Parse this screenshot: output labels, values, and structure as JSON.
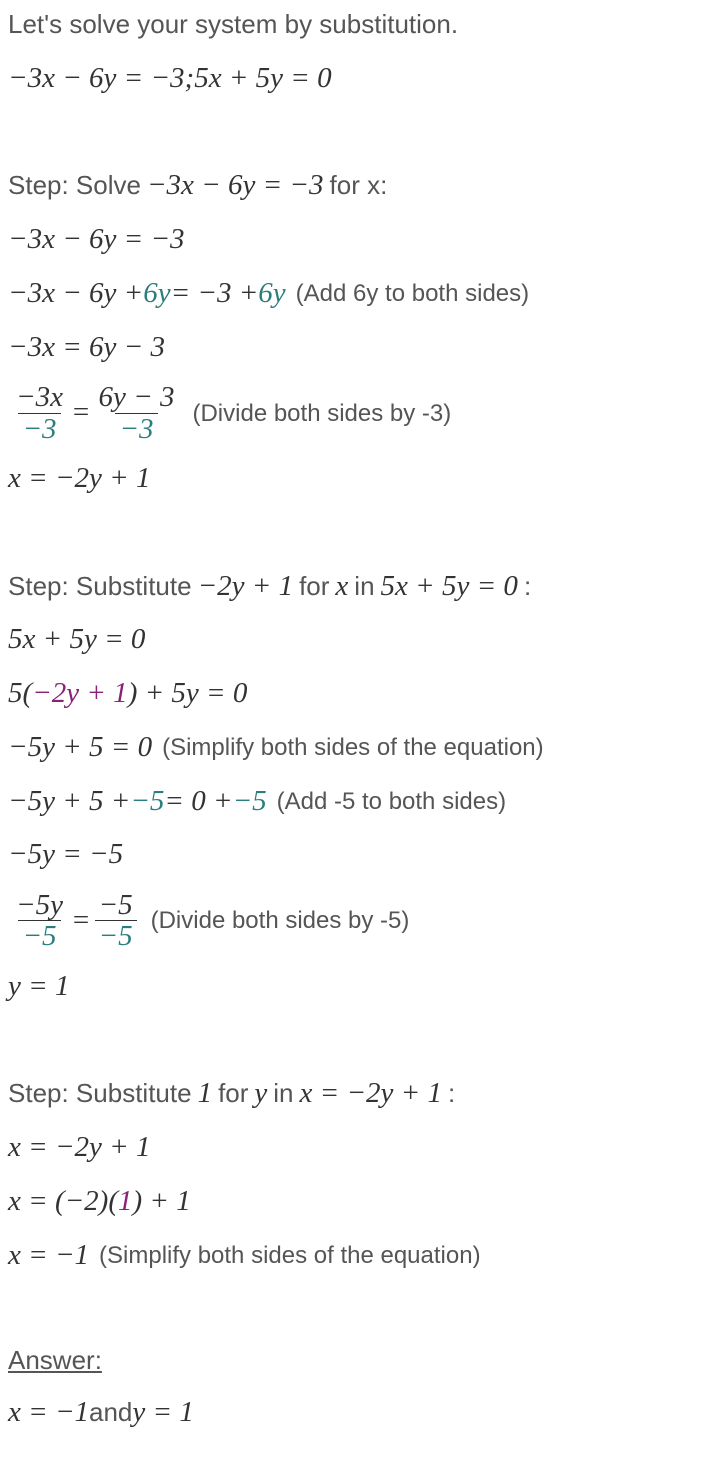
{
  "colors": {
    "teal": "#2a7e7e",
    "purple": "#8a2277",
    "text": "#333333",
    "muted": "#555555"
  },
  "intro": "Let's solve your system by substitution.",
  "system": {
    "eq1": "−3x − 6y = −3",
    "sep": "; ",
    "eq2": "5x + 5y = 0"
  },
  "step1": {
    "prefix": "Step: Solve ",
    "math": "−3x − 6y = −3",
    "suffix": " for x:",
    "l1": "−3x − 6y = −3",
    "l2a": "−3x − 6y + ",
    "l2_teal1": "6y",
    "l2b": " = −3 + ",
    "l2_teal2": "6y",
    "l2_note": "(Add 6y to both sides)",
    "l3": "−3x = 6y − 3",
    "frac_num_l": "−3x",
    "frac_den_l": "−3",
    "frac_eq": " = ",
    "frac_num_r": "6y − 3",
    "frac_den_r": "−3",
    "l4_note": "(Divide both sides by -3)",
    "l5": "x = −2y + 1"
  },
  "step2": {
    "prefix": "Step: Substitute ",
    "sub_purple": "−2y + 1",
    "mid1": " for ",
    "var_x": "x",
    "mid2": " in ",
    "target": "5x + 5y = 0",
    "colon": ":",
    "l1": "5x + 5y = 0",
    "l2a": "5(",
    "l2_purple": "−2y + 1",
    "l2b": ") + 5y = 0",
    "l3": "−5y + 5 = 0",
    "l3_note": "(Simplify both sides of the equation)",
    "l4a": "−5y + 5 + ",
    "l4_teal1": "−5",
    "l4b": " = 0 + ",
    "l4_teal2": "−5",
    "l4_note": "(Add -5 to both sides)",
    "l5": "−5y = −5",
    "frac_num_l": "−5y",
    "frac_den_l": "−5",
    "frac_eq": " = ",
    "frac_num_r": "−5",
    "frac_den_r": "−5",
    "l6_note": "(Divide both sides by -5)",
    "l7": "y = 1"
  },
  "step3": {
    "prefix": "Step: Substitute ",
    "sub_purple": "1",
    "mid1": " for ",
    "var_y": "y",
    "mid2": " in ",
    "target": "x = −2y + 1",
    "colon": ":",
    "l1": "x = −2y + 1",
    "l2a": "x = (−2)(",
    "l2_purple": "1",
    "l2b": ") + 1",
    "l3": "x = −1",
    "l3_note": "(Simplify both sides of the equation)"
  },
  "answer": {
    "label": "Answer:",
    "text_a": "x = −1",
    "and": " and ",
    "text_b": "y = 1"
  }
}
